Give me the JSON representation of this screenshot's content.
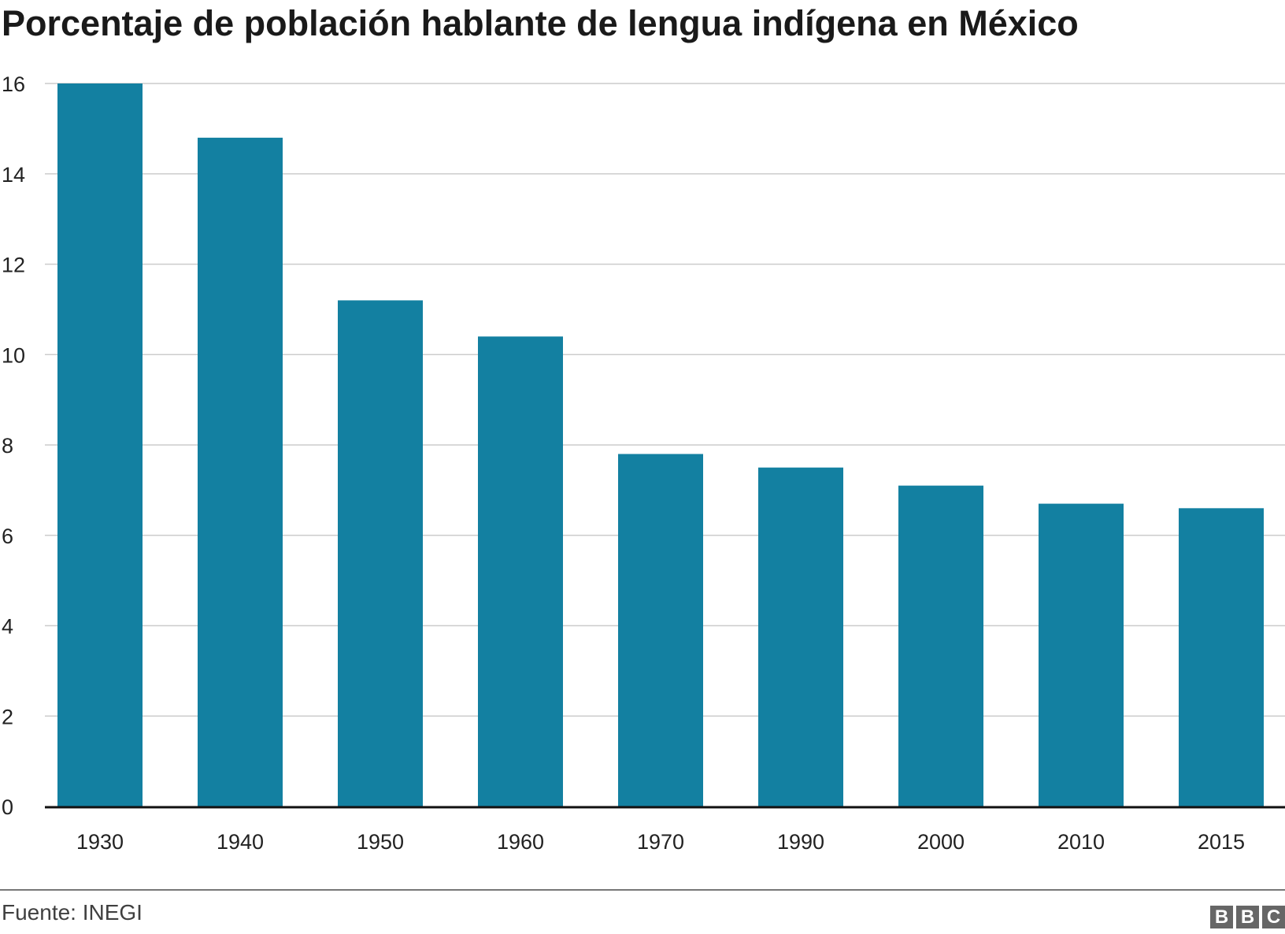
{
  "chart_data": {
    "type": "bar",
    "title": "Porcentaje de población hablante de lengua indígena en México",
    "categories": [
      "1930",
      "1940",
      "1950",
      "1960",
      "1970",
      "1990",
      "2000",
      "2010",
      "2015"
    ],
    "values": [
      16.0,
      14.8,
      11.2,
      10.4,
      7.8,
      7.5,
      7.1,
      6.7,
      6.6
    ],
    "xlabel": "",
    "ylabel": "",
    "ylim": [
      0,
      16
    ],
    "yticks": [
      0,
      2,
      4,
      6,
      8,
      10,
      12,
      14,
      16
    ],
    "grid": true,
    "bar_color": "#1380A1",
    "source": "Fuente: INEGI"
  },
  "branding": {
    "logo": "BBC",
    "letters": [
      "B",
      "B",
      "C"
    ]
  }
}
